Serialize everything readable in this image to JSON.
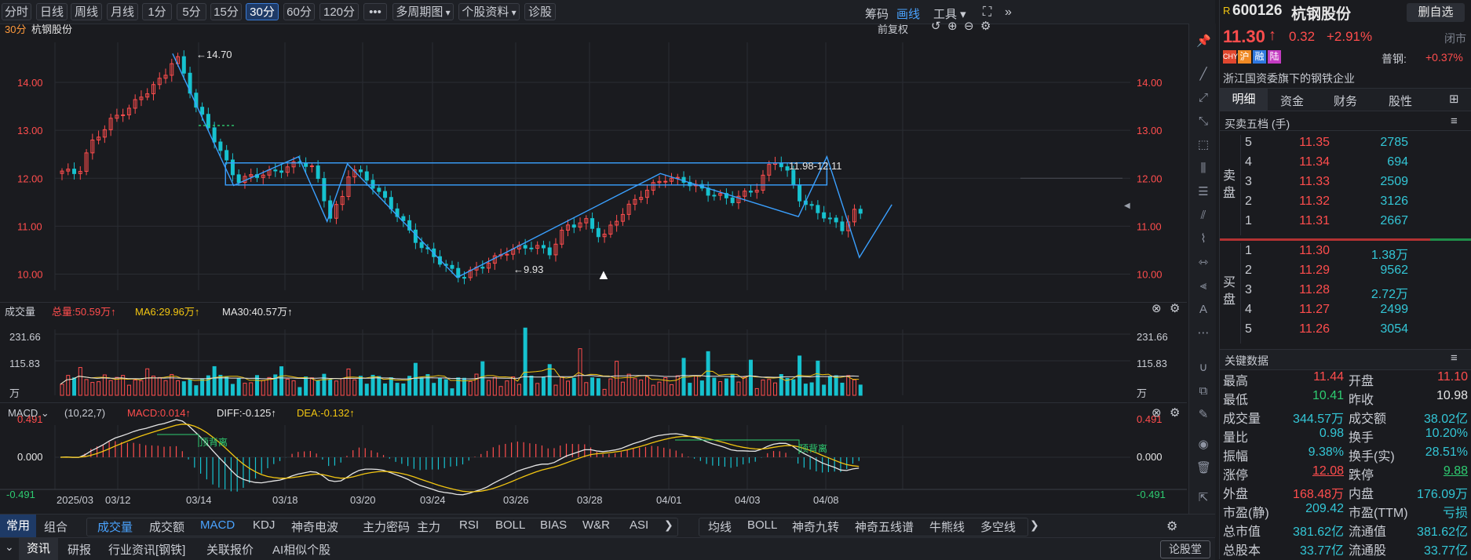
{
  "toolbar": {
    "buttons": [
      "分时",
      "日线",
      "周线",
      "月线",
      "1分",
      "5分",
      "15分",
      "30分",
      "60分",
      "120分"
    ],
    "active": "30分",
    "more": "•••",
    "multi_period": "多周期图",
    "stock_info": "个股资料",
    "diagnose": "诊股",
    "chips": "筹码",
    "draw": "画线",
    "tools": "工具"
  },
  "chart_header": {
    "period": "30分",
    "name": "杭钢股份",
    "restore": "前复权"
  },
  "kline": {
    "y_ticks": [
      "14.00",
      "13.00",
      "12.00",
      "11.00",
      "10.00"
    ],
    "high_label": "←14.70",
    "low_label": "←9.93",
    "range_label": "11.98-12.11"
  },
  "volume": {
    "title": "成交量",
    "total": "总量:50.59万↑",
    "ma6": "MA6:29.96万↑",
    "ma30": "MA30:40.57万↑",
    "y_ticks": [
      "231.66",
      "115.83",
      "万"
    ]
  },
  "macd": {
    "name": "MACD",
    "params": "(10,22,7)",
    "macd": "MACD:0.014↑",
    "diff": "DIFF:-0.125↑",
    "dea": "DEA:-0.132↑",
    "y_ticks": [
      "0.491",
      "0.000",
      "-0.491"
    ],
    "top_divergence_1": "顶背离",
    "top_divergence_2": "顶背离"
  },
  "x_ticks": [
    "2025/03",
    "03/12",
    "03/14",
    "03/18",
    "03/20",
    "03/24",
    "03/26",
    "03/28",
    "04/01",
    "04/03",
    "04/08"
  ],
  "indicator_tabs": {
    "tabs": [
      "常用",
      "组合"
    ],
    "items": [
      "成交量",
      "成交额",
      "MACD",
      "KDJ",
      "神奇电波",
      "主力密码",
      "主力",
      "RSI",
      "BOLL",
      "BIAS",
      "W&R",
      "ASI"
    ],
    "overlays": [
      "均线",
      "BOLL",
      "神奇九转",
      "神奇五线谱",
      "牛熊线",
      "多空线"
    ]
  },
  "bottom_tabs": {
    "items": [
      "资讯",
      "研报",
      "行业资讯[钢铁]",
      "关联报价",
      "AI相似个股"
    ],
    "forum": "论股堂"
  },
  "quote": {
    "r": "R",
    "code": "600126",
    "name": "杭钢股份",
    "del_button": "删自选",
    "price": "11.30",
    "arrow": "↑",
    "change": "0.32",
    "pct": "+2.91%",
    "status": "闭市",
    "tags": [
      "CHY",
      "沪",
      "融",
      "陆"
    ],
    "sector": "普钢:",
    "sector_pct": "+0.37%",
    "desc": "浙江国资委旗下的钢铁企业",
    "tabs": [
      "明细",
      "资金",
      "财务",
      "股性"
    ],
    "orderbook_title": "买卖五档 (手)",
    "sell_label": [
      "卖",
      "盘"
    ],
    "buy_label": [
      "买",
      "盘"
    ],
    "asks": [
      {
        "level": "5",
        "price": "11.35",
        "vol": "2785"
      },
      {
        "level": "4",
        "price": "11.34",
        "vol": "694"
      },
      {
        "level": "3",
        "price": "11.33",
        "vol": "2509"
      },
      {
        "level": "2",
        "price": "11.32",
        "vol": "3126"
      },
      {
        "level": "1",
        "price": "11.31",
        "vol": "2667"
      }
    ],
    "bids": [
      {
        "level": "1",
        "price": "11.30",
        "vol": "1.38万"
      },
      {
        "level": "2",
        "price": "11.29",
        "vol": "9562"
      },
      {
        "level": "3",
        "price": "11.28",
        "vol": "2.72万"
      },
      {
        "level": "4",
        "price": "11.27",
        "vol": "2499"
      },
      {
        "level": "5",
        "price": "11.26",
        "vol": "3054"
      }
    ],
    "key_title": "关键数据",
    "key_rows": [
      {
        "l1": "最高",
        "v1": "11.44",
        "c1": "red",
        "l2": "开盘",
        "v2": "11.10",
        "c2": "red"
      },
      {
        "l1": "最低",
        "v1": "10.41",
        "c1": "green",
        "l2": "昨收",
        "v2": "10.98",
        "c2": "white"
      },
      {
        "l1": "成交量",
        "v1": "344.57万",
        "c1": "cyan",
        "l2": "成交额",
        "v2": "38.02亿",
        "c2": "cyan"
      },
      {
        "l1": "量比",
        "v1": "0.98",
        "c1": "cyan",
        "l2": "换手",
        "v2": "10.20%",
        "c2": "cyan"
      },
      {
        "l1": "振幅",
        "v1": "9.38%",
        "c1": "cyan",
        "l2": "换手(实)",
        "v2": "28.51%",
        "c2": "cyan"
      },
      {
        "l1": "涨停",
        "v1": "12.08",
        "c1": "red",
        "l2": "跌停",
        "v2": "9.88",
        "c2": "green"
      },
      {
        "l1": "外盘",
        "v1": "168.48万",
        "c1": "red",
        "l2": "内盘",
        "v2": "176.09万",
        "c2": "cyan"
      },
      {
        "l1": "市盈(静)",
        "v1": "209.42",
        "c1": "cyan",
        "l2": "市盈(TTM)",
        "v2": "亏损",
        "c2": "cyan"
      },
      {
        "l1": "总市值",
        "v1": "381.62亿",
        "c1": "cyan",
        "l2": "流通值",
        "v2": "381.62亿",
        "c2": "cyan"
      },
      {
        "l1": "总股本",
        "v1": "33.77亿",
        "c1": "cyan",
        "l2": "流通股",
        "v2": "33.77亿",
        "c2": "cyan"
      }
    ]
  },
  "colors": {
    "up": "#ff4d4d",
    "down": "#16c2cf",
    "line": "#3aa0ff",
    "yellow": "#f2c511",
    "white": "#e6e6e6",
    "green": "#2ecc71"
  }
}
